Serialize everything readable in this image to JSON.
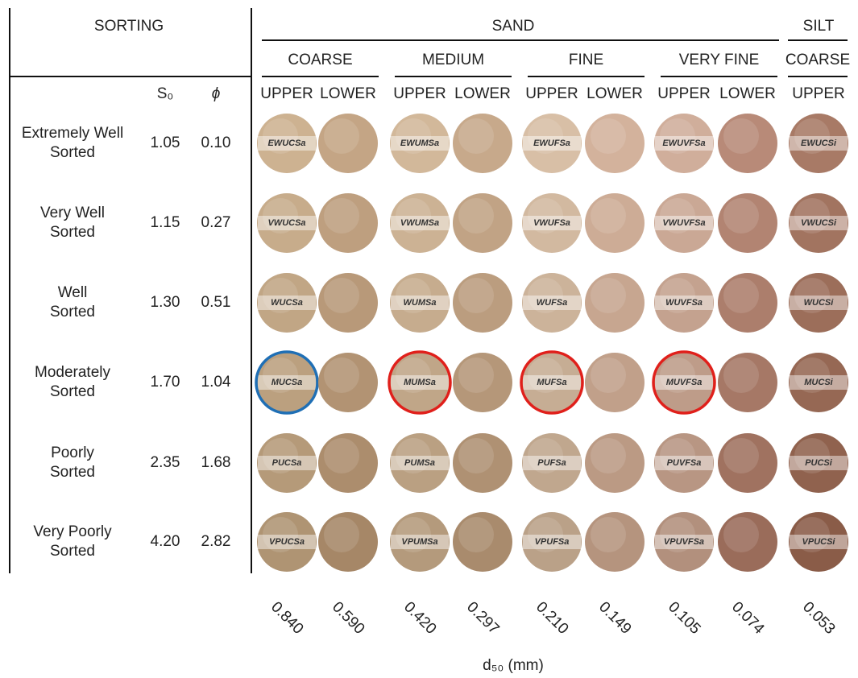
{
  "header": {
    "sorting": "SORTING",
    "sand": "SAND",
    "silt": "SILT",
    "s0": "S₀",
    "phi": "ϕ"
  },
  "groups": [
    {
      "label": "COARSE",
      "subs": [
        "UPPER",
        "LOWER"
      ]
    },
    {
      "label": "MEDIUM",
      "subs": [
        "UPPER",
        "LOWER"
      ]
    },
    {
      "label": "FINE",
      "subs": [
        "UPPER",
        "LOWER"
      ]
    },
    {
      "label": "VERY FINE",
      "subs": [
        "UPPER",
        "LOWER"
      ]
    },
    {
      "label": "COARSE",
      "subs": [
        "UPPER"
      ]
    }
  ],
  "rows": [
    {
      "label": [
        "Extremely Well",
        "Sorted"
      ],
      "s0": "1.05",
      "phi": "0.10",
      "samples": [
        {
          "label": "EWUCSa"
        },
        null,
        {
          "label": "EWUMSa"
        },
        null,
        {
          "label": "EWUFSa"
        },
        null,
        {
          "label": "EWUVFSa"
        },
        null,
        {
          "label": "EWUCSi"
        }
      ]
    },
    {
      "label": [
        "Very Well",
        "Sorted"
      ],
      "s0": "1.15",
      "phi": "0.27",
      "samples": [
        {
          "label": "VWUCSa"
        },
        null,
        {
          "label": "VWUMSa"
        },
        null,
        {
          "label": "VWUFSa"
        },
        null,
        {
          "label": "VWUVFSa"
        },
        null,
        {
          "label": "VWUCSi"
        }
      ]
    },
    {
      "label": [
        "Well",
        "Sorted"
      ],
      "s0": "1.30",
      "phi": "0.51",
      "samples": [
        {
          "label": "WUCSa"
        },
        null,
        {
          "label": "WUMSa"
        },
        null,
        {
          "label": "WUFSa"
        },
        null,
        {
          "label": "WUVFSa"
        },
        null,
        {
          "label": "WUCSi"
        }
      ]
    },
    {
      "label": [
        "Moderately",
        "Sorted"
      ],
      "s0": "1.70",
      "phi": "1.04",
      "samples": [
        {
          "label": "MUCSa",
          "ring": "#1f6fb5"
        },
        null,
        {
          "label": "MUMSa",
          "ring": "#e0201b"
        },
        null,
        {
          "label": "MUFSa",
          "ring": "#e0201b"
        },
        null,
        {
          "label": "MUVFSa",
          "ring": "#e0201b"
        },
        null,
        {
          "label": "MUCSi"
        }
      ]
    },
    {
      "label": [
        "Poorly",
        "Sorted"
      ],
      "s0": "2.35",
      "phi": "1.68",
      "samples": [
        {
          "label": "PUCSa"
        },
        null,
        {
          "label": "PUMSa"
        },
        null,
        {
          "label": "PUFSa"
        },
        null,
        {
          "label": "PUVFSa"
        },
        null,
        {
          "label": "PUCSi"
        }
      ]
    },
    {
      "label": [
        "Very Poorly",
        "Sorted"
      ],
      "s0": "4.20",
      "phi": "2.82",
      "samples": [
        {
          "label": "VPUCSa"
        },
        null,
        {
          "label": "VPUMSa"
        },
        null,
        {
          "label": "VPUFSa"
        },
        null,
        {
          "label": "VPUVFSa"
        },
        null,
        {
          "label": "VPUCSi"
        }
      ]
    }
  ],
  "d50": {
    "values": [
      "0.840",
      "0.590",
      "0.420",
      "0.297",
      "0.210",
      "0.149",
      "0.105",
      "0.074",
      "0.053"
    ],
    "label": "d₅₀ (mm)"
  }
}
